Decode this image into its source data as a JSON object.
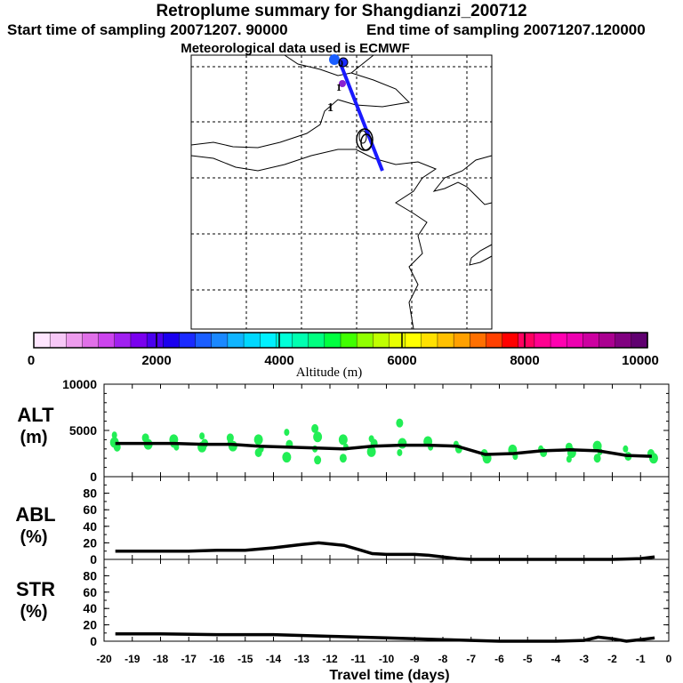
{
  "header": {
    "title": "Retroplume summary for Shangdianzi_200712",
    "start_label": "Start time of sampling 20071207. 90000",
    "end_label": "End time of sampling 20071207.120000",
    "met_label": "Meteorological data used is ECMWF"
  },
  "colors": {
    "plume_line": "#1a1aff",
    "alt_dots": "#22ee55",
    "mean_line": "#000000"
  },
  "map": {
    "markers": [
      "0",
      "1",
      "1"
    ]
  },
  "colorbar": {
    "ticks": [
      "0",
      "2000",
      "4000",
      "6000",
      "8000",
      "10000"
    ],
    "label": "Altitude (m)",
    "colors": [
      "#ffe6ff",
      "#f7c8f7",
      "#ee9cee",
      "#e070e8",
      "#cc44ee",
      "#a020f0",
      "#7a00ee",
      "#4a00ee",
      "#1a00ee",
      "#1a2aff",
      "#1a5eff",
      "#1a88ff",
      "#10b4ff",
      "#00d8ff",
      "#00f0ff",
      "#00ffd8",
      "#00ffb0",
      "#00ff80",
      "#00ff40",
      "#40ff00",
      "#90ff00",
      "#c0ff00",
      "#e8ff00",
      "#ffff00",
      "#ffe000",
      "#ffc000",
      "#ffa000",
      "#ff7000",
      "#ff4000",
      "#ff0000",
      "#ff0060",
      "#ff0090",
      "#ff00b0",
      "#ee00b0",
      "#cc00a0",
      "#aa0090",
      "#800080",
      "#600070"
    ]
  },
  "chart_data": [
    {
      "type": "scatter",
      "panel": "ALT",
      "title": "ALT (m)",
      "ylabel": "ALT (m)",
      "ylim": [
        0,
        10000
      ],
      "yticks": [
        "10000",
        "5000",
        "0"
      ],
      "x": [
        -19.6,
        -18.5,
        -17.5,
        -16.5,
        -15.5,
        -14.5,
        -13.5,
        -12.5,
        -11.5,
        -10.5,
        -9.5,
        -8.5,
        -7.5,
        -6.5,
        -5.5,
        -4.5,
        -3.5,
        -2.5,
        -1.5,
        -0.6
      ],
      "mean_altitude": [
        3600,
        3600,
        3600,
        3500,
        3500,
        3300,
        3200,
        3100,
        3000,
        3300,
        3400,
        3400,
        3300,
        2400,
        2500,
        2800,
        2900,
        2800,
        2300,
        2200
      ],
      "scatter_altitudes": [
        [
          4500,
          3200,
          3700
        ],
        [
          4200,
          3500
        ],
        [
          4000,
          3200,
          3600
        ],
        [
          4400,
          3600,
          3200
        ],
        [
          4200,
          3300,
          3700
        ],
        [
          4000,
          3000,
          2600
        ],
        [
          4800,
          3500,
          2100
        ],
        [
          5200,
          4300,
          3000,
          1800
        ],
        [
          4000,
          3200,
          2000
        ],
        [
          4100,
          3600,
          2700
        ],
        [
          5800,
          3600,
          2600
        ],
        [
          3800,
          3200
        ],
        [
          3500,
          3000
        ],
        [
          2500,
          2000
        ],
        [
          2900,
          2200
        ],
        [
          3000,
          2600
        ],
        [
          3200,
          2600,
          1900
        ],
        [
          3300,
          2700,
          2000
        ],
        [
          3000,
          2200
        ],
        [
          2500,
          2000
        ]
      ]
    },
    {
      "type": "line",
      "panel": "ABL",
      "title": "ABL (%)",
      "ylabel": "ABL (%)",
      "ylim": [
        0,
        100
      ],
      "yticks": [
        "80",
        "60",
        "40",
        "20",
        "0"
      ],
      "x": [
        -19.6,
        -18,
        -17,
        -16,
        -15,
        -14,
        -13,
        -12.4,
        -11.5,
        -11,
        -10.5,
        -10,
        -9,
        -8.5,
        -8,
        -7.5,
        -7,
        -6,
        -5,
        -4,
        -3,
        -2,
        -1,
        -0.5
      ],
      "values": [
        10,
        10,
        10,
        11,
        11,
        14,
        18,
        20,
        17,
        12,
        7,
        6,
        6,
        5,
        3,
        1,
        0,
        0,
        0,
        0,
        0,
        0,
        1,
        3
      ]
    },
    {
      "type": "line",
      "panel": "STR",
      "title": "STR (%)",
      "ylabel": "STR (%)",
      "ylim": [
        0,
        100
      ],
      "yticks": [
        "80",
        "60",
        "40",
        "20",
        "0"
      ],
      "x": [
        -19.6,
        -18,
        -16,
        -14,
        -12,
        -10,
        -8,
        -7,
        -6,
        -5,
        -4,
        -3,
        -2.5,
        -2,
        -1.5,
        -1,
        -0.5
      ],
      "values": [
        9,
        9,
        8,
        8,
        6,
        4,
        2,
        1,
        0,
        0,
        0,
        1,
        5,
        3,
        0,
        2,
        4
      ]
    },
    {
      "type": "axis",
      "panel": "x-axis",
      "xlabel": "Travel time (days)",
      "xlim": [
        -20,
        0
      ],
      "xticks": [
        "-20",
        "-19",
        "-18",
        "-17",
        "-16",
        "-15",
        "-14",
        "-13",
        "-12",
        "-11",
        "-10",
        "-9",
        "-8",
        "-7",
        "-6",
        "-5",
        "-4",
        "-3",
        "-2",
        "-1",
        "0"
      ]
    }
  ]
}
